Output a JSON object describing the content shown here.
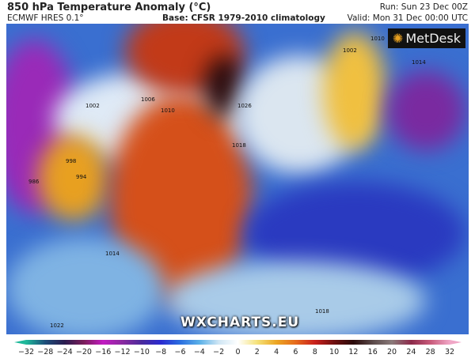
{
  "header": {
    "title": "850 hPa Temperature Anomaly (°C)",
    "model": "ECMWF HRES 0.1°",
    "base": "Base: CFSR 1979-2010 climatology",
    "run": "Run: Sun 23 Dec 00Z",
    "valid": "Valid: Mon 31 Dec 00:00 UTC"
  },
  "logo": {
    "text": "MetDesk",
    "icon": "metdesk-starburst-icon"
  },
  "watermark": "WXCHARTS.EU",
  "isobar_labels": [
    "1002",
    "1006",
    "1010",
    "998",
    "994",
    "986",
    "1014",
    "1018",
    "1026",
    "1002",
    "1010",
    "1014",
    "1018",
    "1022"
  ],
  "colorbar": {
    "ticks": [
      "−32",
      "−28",
      "−24",
      "−20",
      "−16",
      "−12",
      "−10",
      "−8",
      "−6",
      "−4",
      "−2",
      "0",
      "2",
      "4",
      "6",
      "8",
      "10",
      "12",
      "16",
      "20",
      "24",
      "28",
      "32"
    ],
    "colors": [
      "#1fb89a",
      "#1d4d7a",
      "#2a1c4f",
      "#7a1d5a",
      "#c21bc2",
      "#8a2aa0",
      "#4a2a9c",
      "#2a2ad0",
      "#2a6ee0",
      "#5ab0e8",
      "#cfe6f4",
      "#ffffff",
      "#f5e27a",
      "#eca623",
      "#e56a1c",
      "#c9201c",
      "#6e1010",
      "#2a0a0a",
      "#5a4a4a",
      "#8a7a7a",
      "#8c2a4a",
      "#c85a7a",
      "#f0a6c6"
    ]
  }
}
